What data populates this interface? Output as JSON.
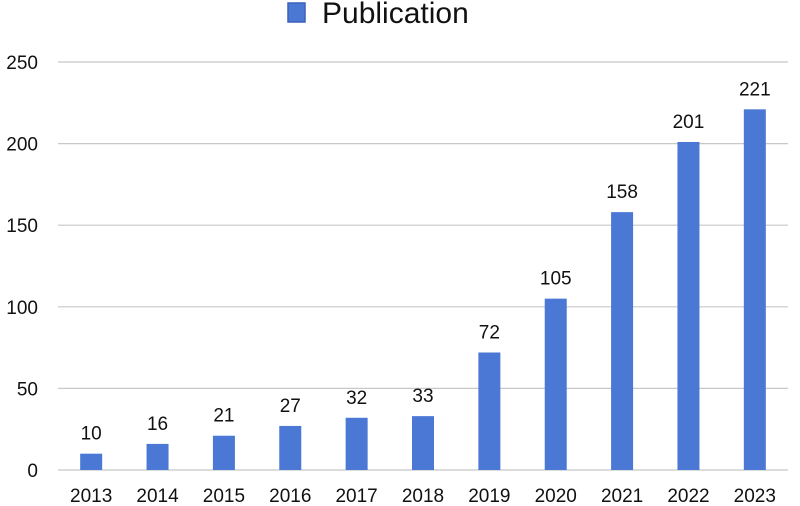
{
  "chart_data": {
    "type": "bar",
    "categories": [
      "2013",
      "2014",
      "2015",
      "2016",
      "2017",
      "2018",
      "2019",
      "2020",
      "2021",
      "2022",
      "2023"
    ],
    "series": [
      {
        "name": "Publication",
        "values": [
          10,
          16,
          21,
          27,
          32,
          33,
          72,
          105,
          158,
          201,
          221
        ]
      }
    ],
    "ylim": [
      0,
      250
    ],
    "yticks": [
      0,
      50,
      100,
      150,
      200,
      250
    ],
    "grid": true,
    "legend_position": "top-center",
    "data_labels": true,
    "colors": {
      "bar": "#4a78d4",
      "bar_edge": "#3a62b8",
      "grid": "#c8c8c8",
      "text": "#111111"
    }
  }
}
